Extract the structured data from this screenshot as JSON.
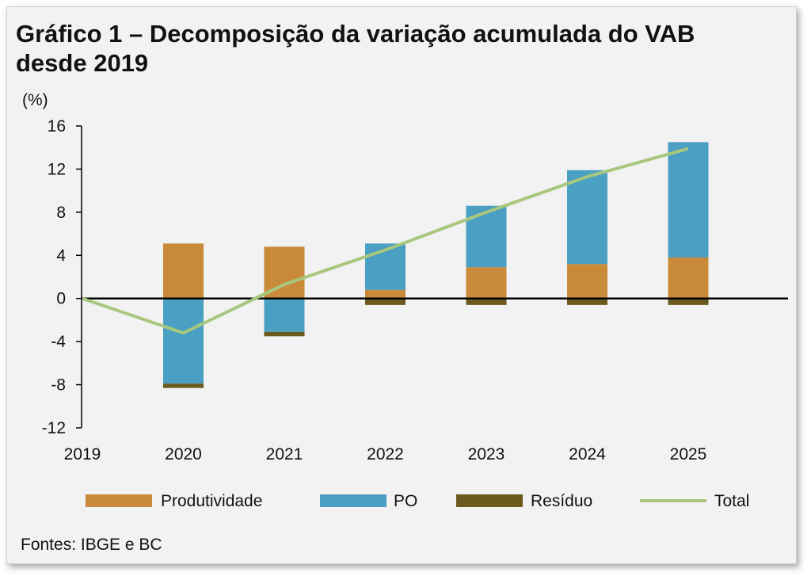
{
  "title_line1": "Gráfico 1 – Decomposição da variação acumulada do VAB",
  "title_line2": "desde 2019",
  "unit_label": "(%)",
  "source": "Fontes: IBGE e BC",
  "colors": {
    "produtividade": "#c98a3a",
    "po": "#4b9fc2",
    "residuo": "#6b5a1e",
    "total": "#a8c77e",
    "axis": "#000000"
  },
  "chart_data": {
    "type": "bar",
    "categories": [
      "2019",
      "2020",
      "2021",
      "2022",
      "2023",
      "2024",
      "2025"
    ],
    "stacked": true,
    "ylim": [
      -12,
      16
    ],
    "yticks": [
      16,
      12,
      8,
      4,
      0,
      -4,
      -8,
      -12
    ],
    "grid": false,
    "legend_position": "bottom",
    "series": [
      {
        "name": "Produtividade",
        "kind": "bar",
        "values": [
          0,
          5.1,
          4.8,
          0.8,
          2.9,
          3.2,
          3.8
        ]
      },
      {
        "name": "PO",
        "kind": "bar",
        "values": [
          0,
          -7.9,
          -3.1,
          4.3,
          5.7,
          8.7,
          10.7
        ]
      },
      {
        "name": "Resíduo",
        "kind": "bar",
        "values": [
          0,
          -0.4,
          -0.4,
          -0.6,
          -0.6,
          -0.6,
          -0.6
        ]
      },
      {
        "name": "Total",
        "kind": "line",
        "values": [
          0,
          -3.2,
          1.3,
          4.5,
          8.0,
          11.3,
          13.9
        ]
      }
    ]
  }
}
